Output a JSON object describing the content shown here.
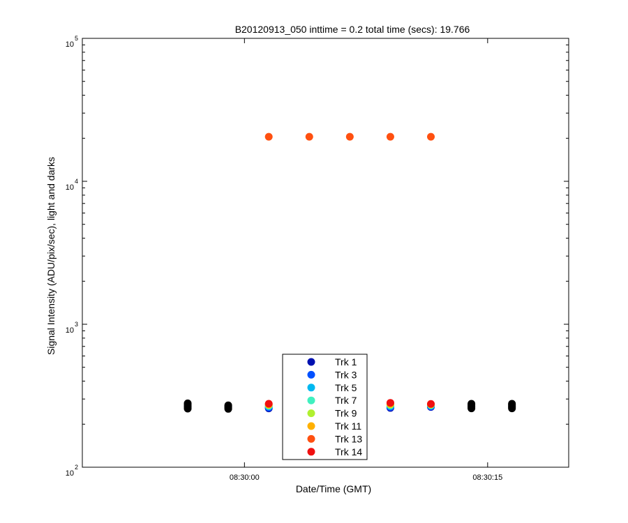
{
  "chart_data": {
    "type": "scatter",
    "title": "B20120913_050 inttime = 0.2 total time (secs): 19.766",
    "xlabel": "Date/Time (GMT)",
    "ylabel": "Signal Intensity (ADU/pix/sec), light and darks",
    "y_scale": "log",
    "ylim": [
      100,
      100000
    ],
    "xlim": [
      "08:29:50",
      "08:30:20"
    ],
    "x_ticks": [
      "08:30:00",
      "08:30:15"
    ],
    "y_ticks": [
      {
        "value": 100,
        "base": "10",
        "exp": "2"
      },
      {
        "value": 1000,
        "base": "10",
        "exp": "3"
      },
      {
        "value": 10000,
        "base": "10",
        "exp": "4"
      },
      {
        "value": 100000,
        "base": "10",
        "exp": "5"
      }
    ],
    "grid": false,
    "legend_position": "bottom-center",
    "series": [
      {
        "name": "Trk 1",
        "color": "#0010b0",
        "x": [
          "08:30:01.5",
          "08:30:09",
          "08:30:11.5"
        ],
        "y": [
          258,
          260,
          264
        ]
      },
      {
        "name": "Trk 3",
        "color": "#0050ff",
        "x": [
          "08:30:01.5",
          "08:30:09",
          "08:30:11.5"
        ],
        "y": [
          262,
          264,
          266
        ]
      },
      {
        "name": "Trk 5",
        "color": "#00b8f0",
        "x": [
          "08:30:01.5",
          "08:30:09",
          "08:30:11.5"
        ],
        "y": [
          266,
          268,
          270
        ]
      },
      {
        "name": "Trk 7",
        "color": "#40f0c0",
        "x": [
          "08:30:01.5",
          "08:30:09",
          "08:30:11.5"
        ],
        "y": [
          270,
          272,
          272
        ]
      },
      {
        "name": "Trk 9",
        "color": "#b0f030",
        "x": [
          "08:30:01.5",
          "08:30:09",
          "08:30:11.5"
        ],
        "y": [
          272,
          274,
          274
        ]
      },
      {
        "name": "Trk 11",
        "color": "#ffb000",
        "x": [
          "08:30:01.5",
          "08:30:09",
          "08:30:11.5"
        ],
        "y": [
          275,
          278,
          276
        ]
      },
      {
        "name": "Trk 13",
        "color": "#ff5010",
        "x": [
          "08:30:01.5",
          "08:30:04",
          "08:30:06.5",
          "08:30:09",
          "08:30:11.5"
        ],
        "y": [
          20500,
          20500,
          20500,
          20500,
          20500
        ]
      },
      {
        "name": "Trk 14",
        "color": "#f01010",
        "x": [
          "08:30:01.5",
          "08:30:09",
          "08:30:11.5"
        ],
        "y": [
          278,
          282,
          277
        ]
      },
      {
        "color": "#000000",
        "x": [
          "08:29:56.5",
          "08:29:56.5",
          "08:29:56.5",
          "08:29:56.5",
          "08:29:56.5",
          "08:29:59",
          "08:29:59",
          "08:29:59",
          "08:29:59",
          "08:30:14",
          "08:30:14",
          "08:30:14",
          "08:30:14",
          "08:30:14",
          "08:30:16.5",
          "08:30:16.5",
          "08:30:16.5",
          "08:30:16.5",
          "08:30:16.5"
        ],
        "y": [
          257,
          263,
          268,
          274,
          280,
          256,
          261,
          266,
          271,
          258,
          263,
          268,
          273,
          278,
          258,
          263,
          268,
          273,
          278
        ]
      }
    ]
  }
}
